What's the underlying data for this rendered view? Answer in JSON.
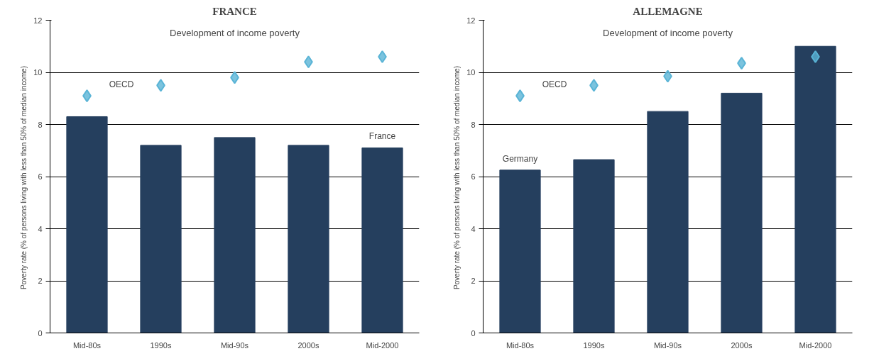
{
  "chart_data": [
    {
      "type": "bar",
      "title": "FRANCE",
      "ylabel": "Poverty rate  (% of persons living with less than 50% of median income)",
      "annotations": [
        "Development of income poverty"
      ],
      "categories": [
        "Mid-80s",
        "1990s",
        "Mid-90s",
        "2000s",
        "Mid-2000"
      ],
      "ylim": [
        0,
        12
      ],
      "yticks": [
        0,
        2,
        4,
        6,
        8,
        10,
        12
      ],
      "grid": "y",
      "marker": "diamond",
      "series": [
        {
          "name": "France",
          "color": "#253f5e",
          "values": [
            8.3,
            7.2,
            7.5,
            7.2,
            7.1
          ]
        },
        {
          "name": "OECD",
          "type": "scatter",
          "color": "#5ab4d6",
          "values": [
            9.1,
            9.5,
            9.8,
            10.4,
            10.6
          ]
        }
      ]
    },
    {
      "type": "bar",
      "title": "ALLEMAGNE",
      "ylabel": "Poverty rate  (% of persons living with less than 50% of median income)",
      "annotations": [
        "Development of income poverty"
      ],
      "categories": [
        "Mid-80s",
        "1990s",
        "Mid-90s",
        "2000s",
        "Mid-2000"
      ],
      "ylim": [
        0,
        12
      ],
      "yticks": [
        0,
        2,
        4,
        6,
        8,
        10,
        12
      ],
      "grid": "y",
      "marker": "diamond",
      "series": [
        {
          "name": "Germany",
          "color": "#253f5e",
          "values": [
            6.25,
            6.65,
            8.5,
            9.2,
            11.0
          ]
        },
        {
          "name": "OECD",
          "type": "scatter",
          "color": "#5ab4d6",
          "values": [
            9.1,
            9.5,
            9.85,
            10.35,
            10.6
          ]
        }
      ]
    }
  ]
}
